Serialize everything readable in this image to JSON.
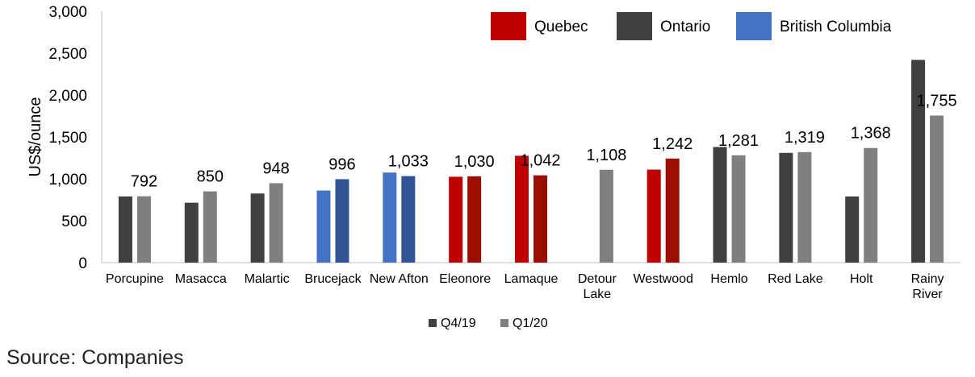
{
  "chart_data": {
    "type": "bar",
    "title": "",
    "xlabel": "",
    "ylabel": "US$/ounce",
    "ylim": [
      0,
      3000
    ],
    "yticks": [
      0,
      500,
      1000,
      1500,
      2000,
      2500,
      3000
    ],
    "ytick_labels": [
      "0",
      "500",
      "1,000",
      "1,500",
      "2,000",
      "2,500",
      "3,000"
    ],
    "grid": false,
    "categories": [
      "Porcupine",
      "Masacca",
      "Malartic",
      "Brucejack",
      "New Afton",
      "Eleonore",
      "Lamaque",
      "Detour Lake",
      "Westwood",
      "Hemlo",
      "Red Lake",
      "Holt",
      "Rainy River"
    ],
    "category_label_lines": [
      [
        "Porcupine"
      ],
      [
        "Masacca"
      ],
      [
        "Malartic"
      ],
      [
        "Brucejack"
      ],
      [
        "New Afton"
      ],
      [
        "Eleonore"
      ],
      [
        "Lamaque"
      ],
      [
        "Detour",
        "Lake"
      ],
      [
        "Westwood"
      ],
      [
        "Hemlo"
      ],
      [
        "Red Lake"
      ],
      [
        "Holt"
      ],
      [
        "Rainy",
        "River"
      ]
    ],
    "region_of_category": [
      "Ontario",
      "Ontario",
      "Ontario",
      "British Columbia",
      "British Columbia",
      "Quebec",
      "Quebec",
      "Ontario",
      "Quebec",
      "Ontario",
      "Ontario",
      "Ontario",
      "Ontario"
    ],
    "series": [
      {
        "name": "Q4/19",
        "values": [
          790,
          715,
          825,
          860,
          1075,
          1025,
          1275,
          null,
          1110,
          1380,
          1310,
          790,
          2420
        ]
      },
      {
        "name": "Q1/20",
        "values": [
          792,
          850,
          948,
          996,
          1033,
          1030,
          1042,
          1108,
          1242,
          1281,
          1319,
          1368,
          1755
        ]
      }
    ],
    "data_labels": [
      "792",
      "850",
      "948",
      "996",
      "1,033",
      "1,030",
      "1,042",
      "1,108",
      "1,242",
      "1,281",
      "1,319",
      "1,368",
      "1,755"
    ],
    "region_legend": [
      {
        "name": "Quebec",
        "color": "#c00000"
      },
      {
        "name": "Ontario",
        "color": "#404040"
      },
      {
        "name": "British Columbia",
        "color": "#4472c4"
      }
    ],
    "region_colors": {
      "Quebec": {
        "q4": "#c00000",
        "q1": "#9b0e00"
      },
      "Ontario": {
        "q4": "#404040",
        "q1": "#7f7f7f"
      },
      "British Columbia": {
        "q4": "#4472c4",
        "q1": "#2f5597"
      }
    },
    "series_legend": [
      {
        "name": "Q4/19",
        "color": "#404040"
      },
      {
        "name": "Q1/20",
        "color": "#7f7f7f"
      }
    ],
    "legend_placement": "top-right (regions), bottom (series)"
  },
  "source_text": "Source: Companies"
}
